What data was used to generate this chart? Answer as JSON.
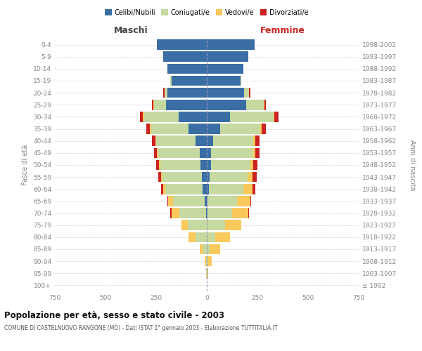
{
  "age_groups": [
    "100+",
    "95-99",
    "90-94",
    "85-89",
    "80-84",
    "75-79",
    "70-74",
    "65-69",
    "60-64",
    "55-59",
    "50-54",
    "45-49",
    "40-44",
    "35-39",
    "30-34",
    "25-29",
    "20-24",
    "15-19",
    "10-14",
    "5-9",
    "0-4"
  ],
  "birth_years": [
    "≤ 1902",
    "1903-1907",
    "1908-1912",
    "1913-1917",
    "1918-1922",
    "1923-1927",
    "1928-1932",
    "1933-1937",
    "1938-1942",
    "1943-1947",
    "1948-1952",
    "1953-1957",
    "1958-1962",
    "1963-1967",
    "1968-1972",
    "1973-1977",
    "1978-1982",
    "1983-1987",
    "1988-1992",
    "1993-1997",
    "1998-2002"
  ],
  "male": {
    "celibi": [
      0,
      0,
      0,
      0,
      0,
      0,
      5,
      10,
      20,
      25,
      30,
      35,
      55,
      90,
      140,
      200,
      195,
      175,
      195,
      215,
      245
    ],
    "coniugati": [
      0,
      2,
      5,
      20,
      55,
      95,
      130,
      155,
      185,
      195,
      200,
      205,
      195,
      185,
      170,
      60,
      15,
      5,
      0,
      0,
      0
    ],
    "vedovi": [
      0,
      0,
      5,
      15,
      35,
      30,
      40,
      25,
      10,
      5,
      5,
      5,
      5,
      5,
      5,
      5,
      0,
      0,
      0,
      0,
      0
    ],
    "divorziati": [
      0,
      0,
      0,
      0,
      0,
      0,
      5,
      5,
      10,
      15,
      15,
      15,
      15,
      20,
      15,
      5,
      5,
      0,
      0,
      0,
      0
    ]
  },
  "female": {
    "nubili": [
      0,
      0,
      0,
      0,
      0,
      0,
      5,
      5,
      10,
      15,
      20,
      20,
      30,
      65,
      115,
      195,
      185,
      165,
      180,
      205,
      235
    ],
    "coniugate": [
      0,
      2,
      5,
      15,
      40,
      90,
      120,
      145,
      170,
      185,
      195,
      210,
      200,
      200,
      215,
      85,
      25,
      5,
      0,
      0,
      0
    ],
    "vedove": [
      0,
      5,
      20,
      50,
      75,
      80,
      80,
      65,
      45,
      25,
      15,
      10,
      10,
      5,
      5,
      5,
      0,
      0,
      0,
      0,
      0
    ],
    "divorziate": [
      0,
      0,
      0,
      0,
      0,
      0,
      5,
      5,
      15,
      20,
      20,
      20,
      20,
      20,
      20,
      5,
      5,
      0,
      0,
      0,
      0
    ]
  },
  "colors": {
    "celibi": "#3a6ea5",
    "coniugati": "#c5d9a0",
    "vedovi": "#f9c95c",
    "divorziati": "#cc2222"
  },
  "legend_labels": [
    "Celibi/Nubili",
    "Coniugati/e",
    "Vedovi/e",
    "Divorziati/e"
  ],
  "title": "Popolazione per età, sesso e stato civile - 2003",
  "subtitle": "COMUNE DI CASTELNUOVO RANGONE (MO) - Dati ISTAT 1° gennaio 2003 - Elaborazione TUTTITALIA.IT",
  "ylabel_left": "Fasce di età",
  "ylabel_right": "Anni di nascita",
  "xlabel_left": "Maschi",
  "xlabel_right": "Femmine",
  "xlim": 750,
  "background_color": "#ffffff",
  "grid_color": "#cccccc"
}
